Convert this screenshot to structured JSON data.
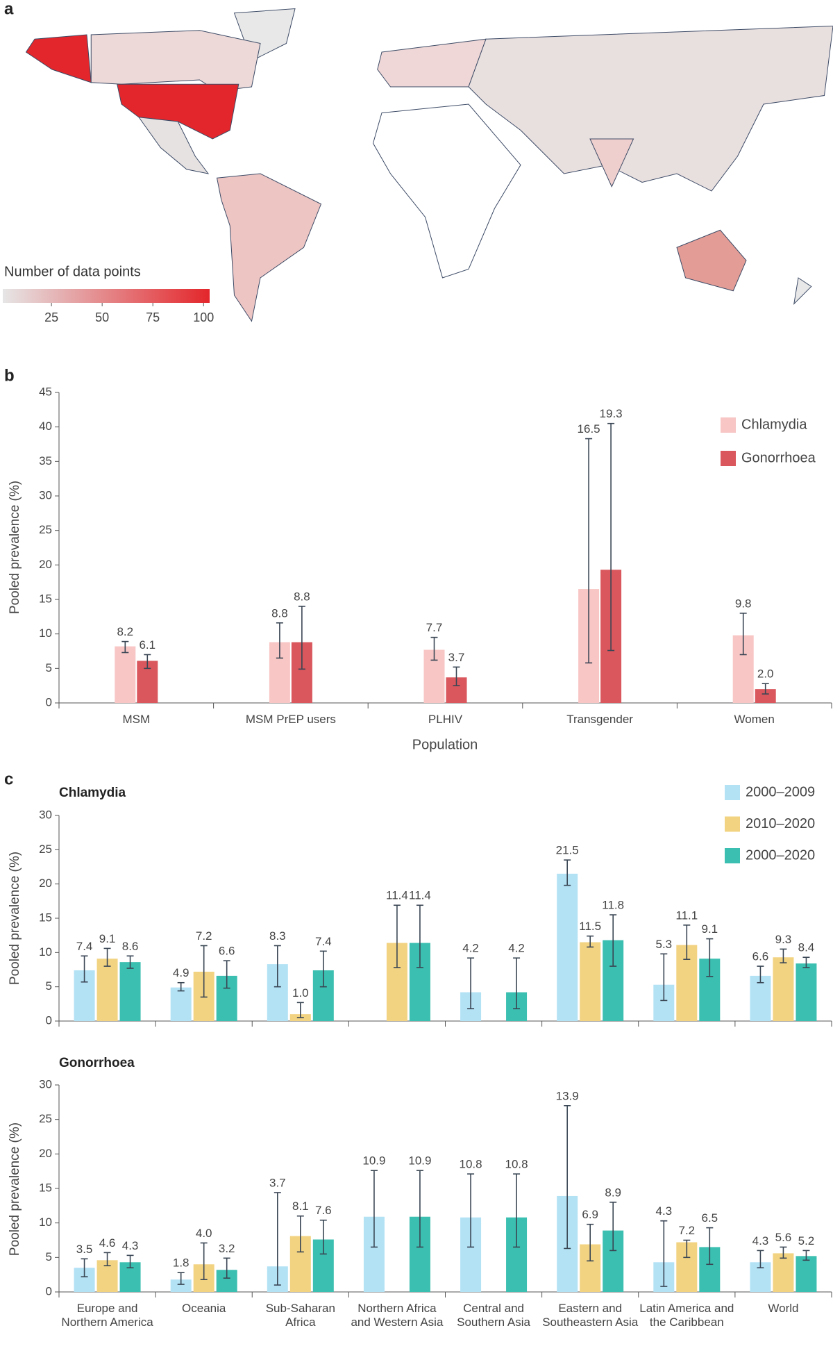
{
  "chart_data": [
    {
      "type": "map",
      "panel_label": "a",
      "colorbar": {
        "title": "Number of data points",
        "lim": [
          1,
          103
        ],
        "ticks": [
          25,
          50,
          75,
          100
        ],
        "colors": [
          "#e6e6e6",
          "#e3262b"
        ]
      }
    },
    {
      "type": "bar",
      "panel_label": "b",
      "xlabel": "Population",
      "ylabel": "Pooled prevalence (%)",
      "categories": [
        "MSM",
        "MSM PrEP users",
        "PLHIV",
        "Transgender",
        "Women"
      ],
      "ylim": [
        0,
        45
      ],
      "yticks": [
        0,
        5,
        10,
        15,
        20,
        25,
        30,
        35,
        40,
        45
      ],
      "legend": "upper right",
      "series": [
        {
          "name": "Chlamydia",
          "color": "#f7c6c5",
          "values": [
            8.2,
            8.8,
            7.7,
            16.5,
            9.8
          ],
          "value_labels": [
            "8.2",
            "8.8",
            "7.7",
            "16.5",
            "9.8"
          ],
          "lower": [
            7.3,
            6.5,
            6.2,
            5.8,
            7.0
          ],
          "upper": [
            8.9,
            11.6,
            9.5,
            38.3,
            13.0
          ]
        },
        {
          "name": "Gonorrhoea",
          "color": "#d9575d",
          "values": [
            6.1,
            8.8,
            3.7,
            19.3,
            2.0
          ],
          "value_labels": [
            "6.1",
            "8.8",
            "3.7",
            "19.3",
            "2.0"
          ],
          "lower": [
            5.0,
            4.9,
            2.5,
            7.6,
            1.3
          ],
          "upper": [
            7.0,
            14.0,
            5.2,
            40.5,
            2.8
          ]
        }
      ]
    },
    {
      "type": "bar",
      "panel_label": "c",
      "title": "Chlamydia",
      "ylabel": "Pooled prevalence (%)",
      "ylim": [
        0,
        30
      ],
      "yticks": [
        0,
        5,
        10,
        15,
        20,
        25,
        30
      ],
      "legend": "upper right",
      "series": [
        {
          "name": "2000–2009",
          "color": "#b3e2f5",
          "values": [
            7.4,
            4.9,
            8.3,
            null,
            4.2,
            21.5,
            5.3,
            6.6
          ],
          "value_labels": [
            "7.4",
            "4.9",
            "8.3",
            null,
            "4.2",
            "21.5",
            "5.3",
            "6.6"
          ],
          "lower": [
            5.7,
            4.4,
            5.0,
            null,
            1.8,
            19.8,
            3.0,
            5.6
          ],
          "upper": [
            9.5,
            5.6,
            11.0,
            null,
            9.2,
            23.5,
            9.8,
            8.0
          ]
        },
        {
          "name": "2010–2020",
          "color": "#f2d382",
          "values": [
            9.1,
            7.2,
            1.0,
            11.4,
            null,
            11.5,
            11.1,
            9.3
          ],
          "value_labels": [
            "9.1",
            "7.2",
            "1.0",
            "11.4",
            null,
            "11.5",
            "11.1",
            "9.3"
          ],
          "lower": [
            8.0,
            3.5,
            0.5,
            7.8,
            null,
            10.8,
            9.0,
            8.5
          ],
          "upper": [
            10.6,
            11.0,
            2.7,
            16.9,
            null,
            12.4,
            14.0,
            10.5
          ]
        },
        {
          "name": "2000–2020",
          "color": "#3bbfb0",
          "values": [
            8.6,
            6.6,
            7.4,
            11.4,
            4.2,
            11.8,
            9.1,
            8.4
          ],
          "value_labels": [
            "8.6",
            "6.6",
            "7.4",
            "11.4",
            "4.2",
            "11.8",
            "9.1",
            "8.4"
          ],
          "lower": [
            7.7,
            4.8,
            5.0,
            7.8,
            1.8,
            8.0,
            6.5,
            7.8
          ],
          "upper": [
            9.5,
            8.8,
            10.2,
            16.9,
            9.2,
            15.5,
            12.0,
            9.3
          ]
        }
      ]
    },
    {
      "type": "bar",
      "title": "Gonorrhoea",
      "ylabel": "Pooled prevalence (%)",
      "categories": [
        "Europe and Northern America",
        "Oceania",
        "Sub-Saharan Africa",
        "Northern Africa and Western Asia",
        "Central and Southern Asia",
        "Eastern and Southeastern Asia",
        "Latin America and the Caribbean",
        "World"
      ],
      "ylim": [
        0,
        30
      ],
      "yticks": [
        0,
        5,
        10,
        15,
        20,
        25,
        30
      ],
      "series": [
        {
          "color": "#b3e2f5",
          "values": [
            3.5,
            1.8,
            3.7,
            10.9,
            10.8,
            13.9,
            4.3,
            4.3
          ],
          "value_labels": [
            "3.5",
            "1.8",
            "3.7",
            "10.9",
            "10.8",
            "13.9",
            "4.3",
            "4.3"
          ],
          "lower": [
            2.2,
            1.1,
            1.0,
            6.5,
            6.5,
            6.3,
            0.8,
            3.5
          ],
          "upper": [
            4.8,
            2.8,
            14.4,
            17.6,
            17.1,
            27.0,
            10.3,
            6.0
          ]
        },
        {
          "color": "#f2d382",
          "values": [
            4.6,
            4.0,
            8.1,
            null,
            null,
            6.9,
            7.2,
            5.6
          ],
          "value_labels": [
            "4.6",
            "4.0",
            "8.1",
            null,
            null,
            "6.9",
            "7.2",
            "5.6"
          ],
          "lower": [
            3.8,
            1.8,
            5.8,
            null,
            null,
            4.5,
            5.0,
            4.9
          ],
          "upper": [
            5.7,
            7.1,
            11.0,
            null,
            null,
            9.8,
            7.5,
            6.5
          ]
        },
        {
          "color": "#3bbfb0",
          "values": [
            4.3,
            3.2,
            7.6,
            10.9,
            10.8,
            8.9,
            6.5,
            5.2
          ],
          "value_labels": [
            "4.3",
            "3.2",
            "7.6",
            "10.9",
            "10.8",
            "8.9",
            "6.5",
            "5.2"
          ],
          "lower": [
            3.5,
            2.0,
            5.5,
            6.5,
            6.5,
            6.0,
            4.0,
            4.6
          ],
          "upper": [
            5.3,
            4.9,
            10.4,
            17.6,
            17.1,
            13.0,
            9.3,
            6.0
          ]
        }
      ]
    }
  ]
}
